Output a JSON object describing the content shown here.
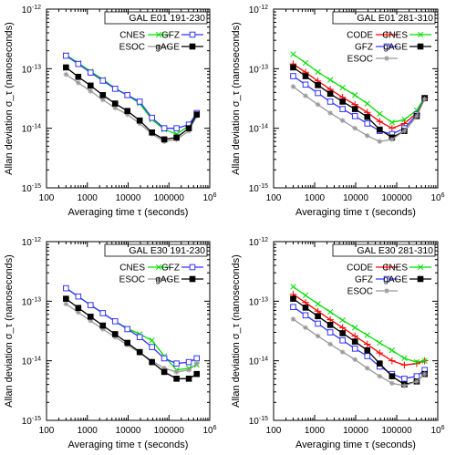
{
  "chart_data": [
    {
      "type": "line",
      "title": "GAL E01 191-230",
      "xlabel": "Averaging time τ (seconds)",
      "ylabel": "Allan deviation σ_τ (nanoseconds)",
      "x_scale": "log",
      "y_scale": "log",
      "xlim": [
        100,
        1000000
      ],
      "ylim": [
        1e-15,
        1e-12
      ],
      "x_ticks": [
        "100",
        "1000",
        "10000",
        "100000",
        "10^6"
      ],
      "y_ticks": [
        "10^-15",
        "10^-14",
        "10^-13",
        "10^-12"
      ],
      "legend_position": "top-right",
      "series": [
        {
          "name": "CNES",
          "color": "#00dd00",
          "marker": "x",
          "x": [
            300,
            600,
            1200,
            2400,
            4800,
            9600,
            19200,
            38400,
            76800,
            153600,
            307200,
            480000
          ],
          "y": [
            1.7e-13,
            1.25e-13,
            9e-14,
            6.6e-14,
            4.7e-14,
            3.6e-14,
            2.6e-14,
            1.4e-14,
            9.5e-15,
            8e-15,
            1.1e-14,
            1.75e-14
          ]
        },
        {
          "name": "GFZ",
          "color": "#3333ff",
          "marker": "open-square",
          "x": [
            300,
            600,
            1200,
            2400,
            4800,
            9600,
            19200,
            38400,
            76800,
            153600,
            307200,
            480000
          ],
          "y": [
            1.65e-13,
            1.2e-13,
            8.6e-14,
            6.3e-14,
            4.6e-14,
            3.6e-14,
            2.8e-14,
            1.5e-14,
            1e-14,
            1e-14,
            1.15e-14,
            1.8e-14
          ]
        },
        {
          "name": "ESOC",
          "color": "#999999",
          "marker": "asterisk",
          "x": [
            300,
            600,
            1200,
            2400,
            4800,
            9600,
            19200,
            38400,
            76800,
            153600,
            307200,
            480000
          ],
          "y": [
            8e-14,
            5.8e-14,
            4.2e-14,
            3e-14,
            2.2e-14,
            1.7e-14,
            1.2e-14,
            8e-15,
            6e-15,
            6.5e-15,
            9e-15,
            1.6e-14
          ]
        },
        {
          "name": "gAGE",
          "color": "#000000",
          "marker": "filled-square",
          "x": [
            300,
            600,
            1200,
            2400,
            4800,
            9600,
            19200,
            38400,
            76800,
            153600,
            307200,
            480000
          ],
          "y": [
            1.05e-13,
            7.3e-14,
            5.2e-14,
            3.6e-14,
            2.6e-14,
            1.95e-14,
            1.35e-14,
            8.5e-15,
            6.5e-15,
            7e-15,
            1e-14,
            1.7e-14
          ]
        }
      ]
    },
    {
      "type": "line",
      "title": "GAL E01 281-310",
      "xlabel": "Averaging time τ (seconds)",
      "ylabel": "Allan deviation σ_τ (nanoseconds)",
      "x_scale": "log",
      "y_scale": "log",
      "xlim": [
        100,
        1000000
      ],
      "ylim": [
        1e-15,
        1e-12
      ],
      "x_ticks": [
        "100",
        "1000",
        "10000",
        "100000",
        "10^6"
      ],
      "y_ticks": [
        "10^-15",
        "10^-14",
        "10^-13",
        "10^-12"
      ],
      "legend_position": "top-right",
      "series": [
        {
          "name": "CODE",
          "color": "#ff0000",
          "marker": "plus",
          "x": [
            300,
            600,
            1200,
            2400,
            4800,
            9600,
            19200,
            38400,
            76800,
            153600,
            307200,
            480000
          ],
          "y": [
            1.2e-13,
            8.7e-14,
            6.2e-14,
            4.5e-14,
            3.3e-14,
            2.5e-14,
            1.85e-14,
            1.3e-14,
            1e-14,
            1.2e-14,
            1.8e-14,
            3.2e-14
          ]
        },
        {
          "name": "CNES",
          "color": "#00dd00",
          "marker": "x",
          "x": [
            300,
            600,
            1200,
            2400,
            4800,
            9600,
            19200,
            38400,
            76800,
            153600,
            307200,
            480000
          ],
          "y": [
            1.75e-13,
            1.25e-13,
            8.8e-14,
            6.5e-14,
            4.8e-14,
            3.6e-14,
            2.6e-14,
            1.75e-14,
            1.25e-14,
            1.4e-14,
            2e-14,
            3.3e-14
          ]
        },
        {
          "name": "GFZ",
          "color": "#3333ff",
          "marker": "open-square",
          "x": [
            300,
            600,
            1200,
            2400,
            4800,
            9600,
            19200,
            38400,
            76800,
            153600,
            307200,
            480000
          ],
          "y": [
            7.5e-14,
            5.4e-14,
            3.9e-14,
            2.8e-14,
            2.1e-14,
            1.6e-14,
            1.2e-14,
            9e-15,
            8e-15,
            1e-14,
            1.7e-14,
            3.2e-14
          ]
        },
        {
          "name": "gAGE",
          "color": "#000000",
          "marker": "filled-square",
          "x": [
            300,
            600,
            1200,
            2400,
            4800,
            9600,
            19200,
            38400,
            76800,
            153600,
            307200,
            480000
          ],
          "y": [
            1.05e-13,
            7.5e-14,
            5.3e-14,
            3.8e-14,
            2.8e-14,
            2.1e-14,
            1.55e-14,
            9.5e-15,
            7e-15,
            9e-15,
            1.6e-14,
            3.2e-14
          ]
        },
        {
          "name": "ESOC",
          "color": "#999999",
          "marker": "asterisk",
          "x": [
            300,
            600,
            1200,
            2400,
            4800,
            9600,
            19200,
            38400,
            76800,
            153600,
            307200,
            480000
          ],
          "y": [
            5e-14,
            3.5e-14,
            2.5e-14,
            1.8e-14,
            1.35e-14,
            1e-14,
            7.5e-15,
            6e-15,
            6.5e-15,
            9e-15,
            1.6e-14,
            3.1e-14
          ]
        }
      ]
    },
    {
      "type": "line",
      "title": "GAL E30 191-230",
      "xlabel": "Averaging time τ (seconds)",
      "ylabel": "Allan deviation σ_τ (nanoseconds)",
      "x_scale": "log",
      "y_scale": "log",
      "xlim": [
        100,
        1000000
      ],
      "ylim": [
        1e-15,
        1e-12
      ],
      "x_ticks": [
        "100",
        "1000",
        "10000",
        "100000",
        "10^6"
      ],
      "y_ticks": [
        "10^-15",
        "10^-14",
        "10^-13",
        "10^-12"
      ],
      "legend_position": "top-right",
      "series": [
        {
          "name": "CNES",
          "color": "#00dd00",
          "marker": "x",
          "x": [
            300,
            600,
            1200,
            2400,
            4800,
            9600,
            19200,
            38400,
            76800,
            153600,
            307200,
            480000
          ],
          "y": [
            1.65e-13,
            1.2e-13,
            8.6e-14,
            6.3e-14,
            4.6e-14,
            3.5e-14,
            2.8e-14,
            2.2e-14,
            1.2e-14,
            7e-15,
            7.5e-15,
            8.5e-15
          ]
        },
        {
          "name": "GFZ",
          "color": "#3333ff",
          "marker": "open-square",
          "x": [
            300,
            600,
            1200,
            2400,
            4800,
            9600,
            19200,
            38400,
            76800,
            153600,
            307200,
            480000
          ],
          "y": [
            1.65e-13,
            1.2e-13,
            8.6e-14,
            6.3e-14,
            4.6e-14,
            3.4e-14,
            2.5e-14,
            1.7e-14,
            1.1e-14,
            9e-15,
            9.5e-15,
            1.1e-14
          ]
        },
        {
          "name": "ESOC",
          "color": "#999999",
          "marker": "asterisk",
          "x": [
            300,
            600,
            1200,
            2400,
            4800,
            9600,
            19200,
            38400,
            76800,
            153600,
            307200,
            480000
          ],
          "y": [
            9e-14,
            6.5e-14,
            4.7e-14,
            3.4e-14,
            2.5e-14,
            1.85e-14,
            1.35e-14,
            1e-14,
            7.5e-15,
            6.5e-15,
            7e-15,
            9e-15
          ]
        },
        {
          "name": "gAGE",
          "color": "#000000",
          "marker": "filled-square",
          "x": [
            300,
            600,
            1200,
            2400,
            4800,
            9600,
            19200,
            38400,
            76800,
            153600,
            307200,
            480000
          ],
          "y": [
            1.1e-13,
            7.7e-14,
            5.5e-14,
            3.9e-14,
            2.8e-14,
            2e-14,
            1.4e-14,
            9.5e-15,
            6.5e-15,
            5e-15,
            5e-15,
            6e-15
          ]
        }
      ]
    },
    {
      "type": "line",
      "title": "GAL E30 281-310",
      "xlabel": "Averaging time τ (seconds)",
      "ylabel": "Allan deviation σ_τ (nanoseconds)",
      "x_scale": "log",
      "y_scale": "log",
      "xlim": [
        100,
        1000000
      ],
      "ylim": [
        1e-15,
        1e-12
      ],
      "x_ticks": [
        "100",
        "1000",
        "10000",
        "100000",
        "10^6"
      ],
      "y_ticks": [
        "10^-15",
        "10^-14",
        "10^-13",
        "10^-12"
      ],
      "legend_position": "top-right",
      "series": [
        {
          "name": "CODE",
          "color": "#ff0000",
          "marker": "plus",
          "x": [
            300,
            600,
            1200,
            2400,
            4800,
            9600,
            19200,
            38400,
            76800,
            153600,
            307200,
            480000
          ],
          "y": [
            1.3e-13,
            9.5e-14,
            6.8e-14,
            4.9e-14,
            3.6e-14,
            2.6e-14,
            1.9e-14,
            1.35e-14,
            1e-14,
            8.5e-15,
            9e-15,
            1e-14
          ]
        },
        {
          "name": "CNES",
          "color": "#00dd00",
          "marker": "x",
          "x": [
            300,
            600,
            1200,
            2400,
            4800,
            9600,
            19200,
            38400,
            76800,
            153600,
            307200,
            480000
          ],
          "y": [
            1.75e-13,
            1.25e-13,
            9e-14,
            6.6e-14,
            4.8e-14,
            3.6e-14,
            2.7e-14,
            2e-14,
            1.5e-14,
            1.1e-14,
            9.5e-15,
            1e-14
          ]
        },
        {
          "name": "GFZ",
          "color": "#3333ff",
          "marker": "open-square",
          "x": [
            300,
            600,
            1200,
            2400,
            4800,
            9600,
            19200,
            38400,
            76800,
            153600,
            307200,
            480000
          ],
          "y": [
            8e-14,
            5.8e-14,
            4.2e-14,
            3e-14,
            2.2e-14,
            1.6e-14,
            1.2e-14,
            8e-15,
            6e-15,
            5e-15,
            5.5e-15,
            7e-15
          ]
        },
        {
          "name": "gAGE",
          "color": "#000000",
          "marker": "filled-square",
          "x": [
            300,
            600,
            1200,
            2400,
            4800,
            9600,
            19200,
            38400,
            76800,
            153600,
            307200,
            480000
          ],
          "y": [
            1.1e-13,
            7.8e-14,
            5.6e-14,
            4e-14,
            2.9e-14,
            2.1e-14,
            1.5e-14,
            9e-15,
            5.5e-15,
            4e-15,
            4.5e-15,
            6e-15
          ]
        },
        {
          "name": "ESOC",
          "color": "#999999",
          "marker": "asterisk",
          "x": [
            300,
            600,
            1200,
            2400,
            4800,
            9600,
            19200,
            38400,
            76800,
            153600,
            307200,
            480000
          ],
          "y": [
            5e-14,
            3.6e-14,
            2.6e-14,
            1.9e-14,
            1.4e-14,
            1.05e-14,
            7.5e-15,
            5.5e-15,
            4.2e-15,
            3.8e-15,
            4.5e-15,
            6e-15
          ]
        }
      ]
    }
  ]
}
